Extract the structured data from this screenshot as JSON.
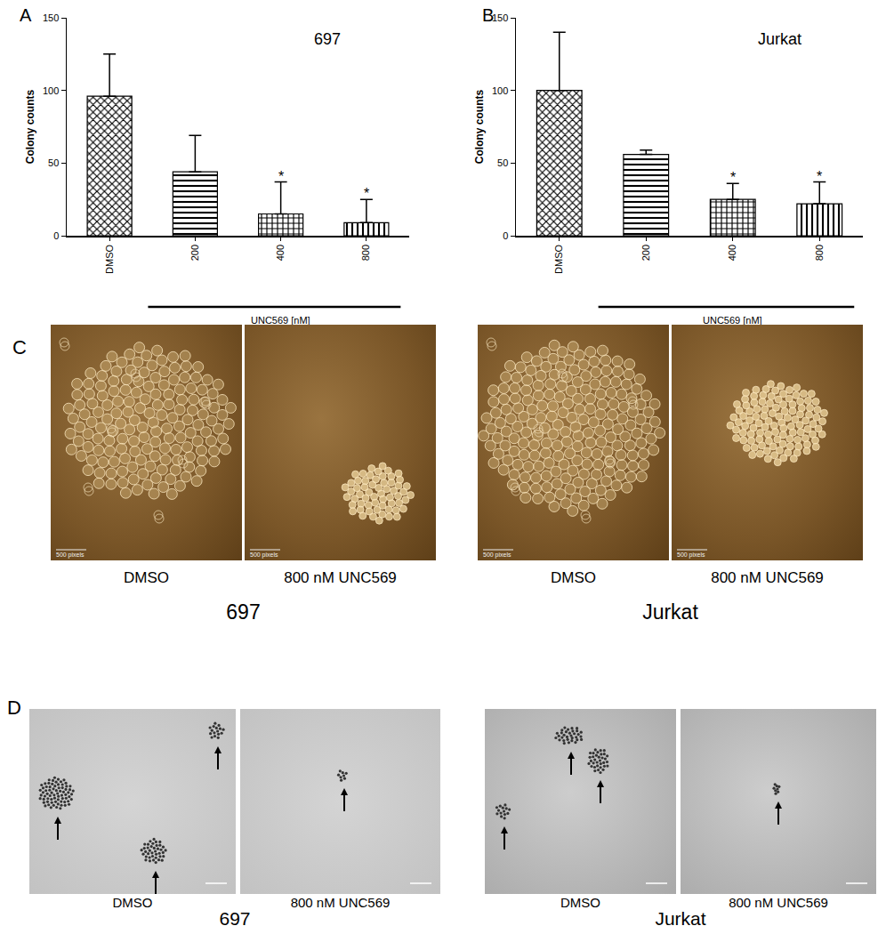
{
  "chart_data": [
    {
      "type": "bar",
      "label": "A",
      "title": "697",
      "categories": [
        "DMSO",
        "200",
        "400",
        "800"
      ],
      "values": [
        96,
        44,
        15,
        9
      ],
      "errors": [
        29,
        25,
        22,
        16
      ],
      "color": "#000000",
      "ylim": [
        0,
        150
      ],
      "yticks": [
        0,
        50,
        100,
        150
      ],
      "y_label": "Colony counts",
      "group_label": {
        "text": "UNC569 [nM]",
        "categories": [
          "200",
          "400",
          "800"
        ]
      },
      "annotations": [
        {
          "category": "400",
          "text": "*"
        },
        {
          "category": "800",
          "text": "*"
        }
      ],
      "grid": false
    },
    {
      "type": "bar",
      "label": "B",
      "title": "Jurkat",
      "categories": [
        "DMSO",
        "200",
        "400",
        "800"
      ],
      "values": [
        100,
        56,
        25,
        22
      ],
      "errors": [
        40,
        3,
        11,
        15
      ],
      "color": "#000000",
      "ylim": [
        0,
        150
      ],
      "yticks": [
        0,
        50,
        100,
        150
      ],
      "y_label": "Colony counts",
      "group_label": {
        "text": "UNC569 [nM]",
        "categories": [
          "200",
          "400",
          "800"
        ]
      },
      "annotations": [
        {
          "category": "400",
          "text": "*"
        },
        {
          "category": "800",
          "text": "*"
        }
      ],
      "grid": false
    }
  ],
  "panels": [
    {
      "label": "C",
      "groups": [
        {
          "name": "697",
          "images": [
            {
              "caption": "DMSO",
              "scale_bar": "500 pixels"
            },
            {
              "caption": "800 nM UNC569",
              "scale_bar": "500 pixels"
            }
          ]
        },
        {
          "name": "Jurkat",
          "images": [
            {
              "caption": "DMSO",
              "scale_bar": "500 pixels"
            },
            {
              "caption": "800 nM UNC569",
              "scale_bar": "500 pixels"
            }
          ]
        }
      ]
    },
    {
      "label": "D",
      "groups": [
        {
          "name": "697",
          "images": [
            {
              "caption": "DMSO"
            },
            {
              "caption": "800 nM UNC569"
            }
          ]
        },
        {
          "name": "Jurkat",
          "images": [
            {
              "caption": "DMSO"
            },
            {
              "caption": "800 nM UNC569"
            }
          ]
        }
      ]
    }
  ]
}
